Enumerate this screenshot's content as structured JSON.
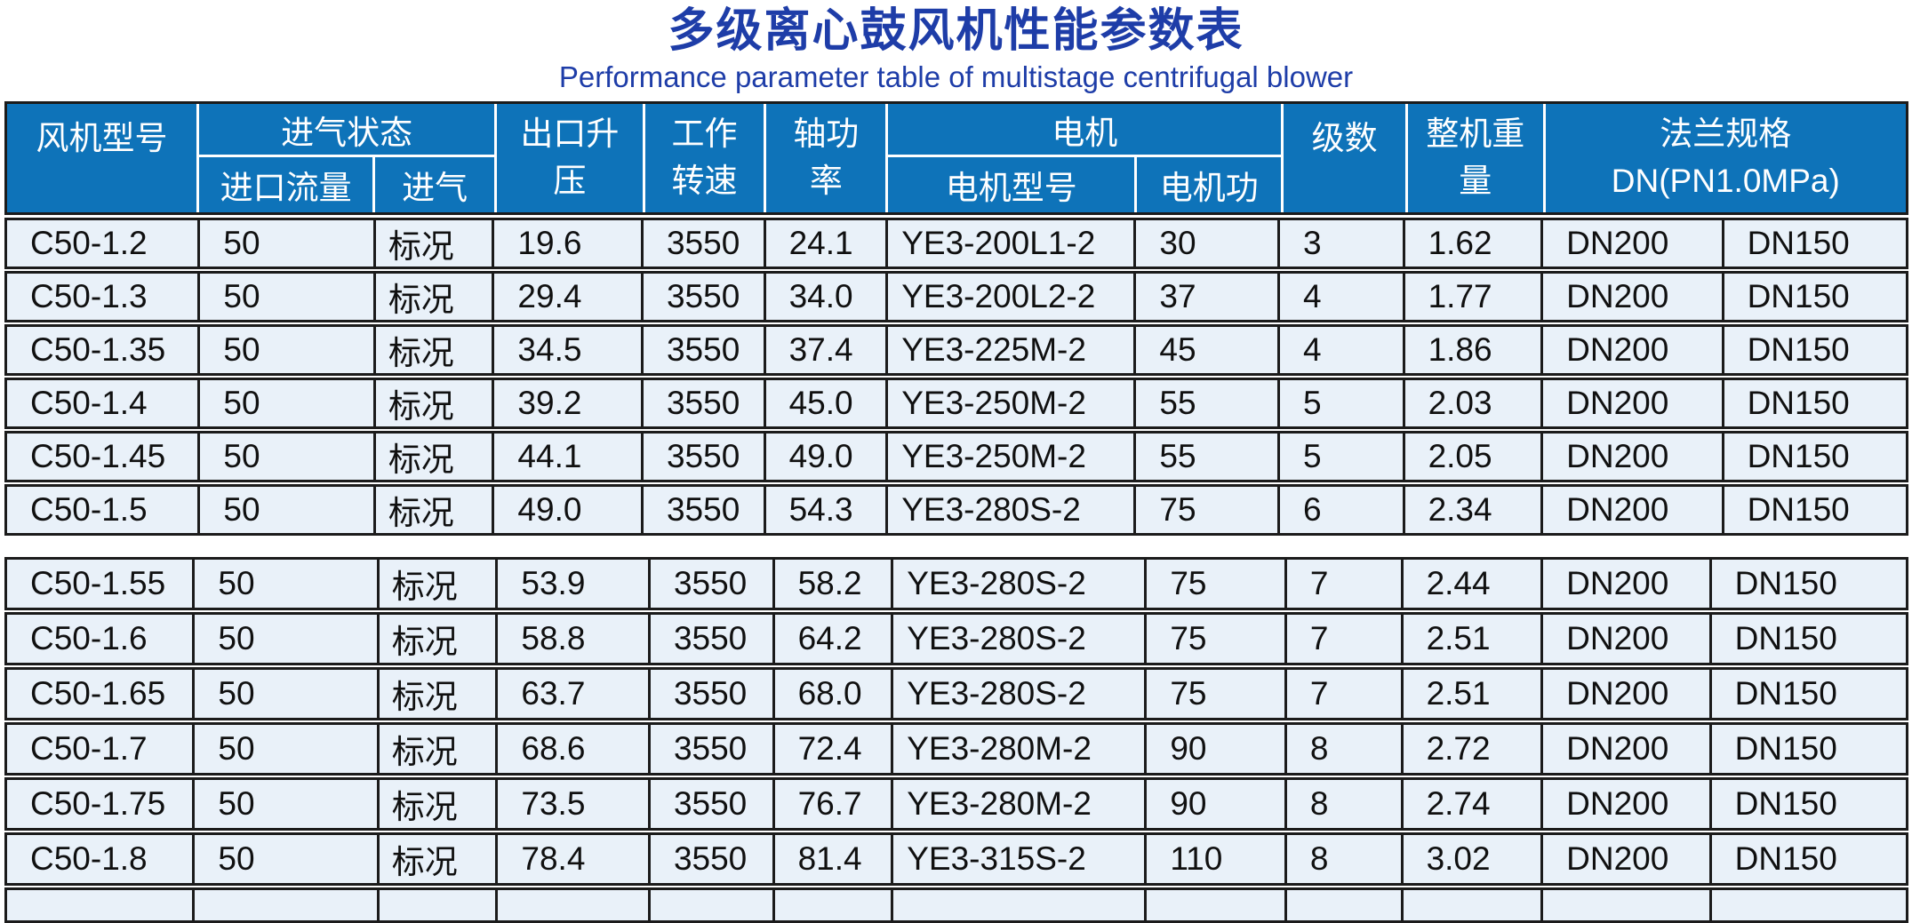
{
  "title": {
    "zh": "多级离心鼓风机性能参数表",
    "en": "Performance parameter table of multistage centrifugal blower"
  },
  "colors": {
    "title_blue": "#1e3da8",
    "header_bg": "#0e73b9",
    "header_text": "#ffffff",
    "row_bg": "#e9f1f9",
    "border_dark": "#1b1b1b"
  },
  "table": {
    "header": {
      "fan_model": "风机型号",
      "intake_state": "进气状态",
      "inlet_flow": "进口流量",
      "intake": "进气",
      "outlet_rise_l1": "出口升",
      "outlet_rise_l2": "压",
      "speed_l1": "工作",
      "speed_l2": "转速",
      "shaft_power_l1": "轴功",
      "shaft_power_l2": "率",
      "motor": "电机",
      "motor_model": "电机型号",
      "motor_power": "电机功",
      "stages": "级数",
      "weight_l1": "整机重",
      "weight_l2": "量",
      "flange_l1": "法兰规格",
      "flange_l2": "DN(PN1.0MPa)"
    },
    "rows_section1": [
      {
        "model": "C50-1.2",
        "flow": "50",
        "state": "标况",
        "pressure": "19.6",
        "speed": "3550",
        "shaft_power": "24.1",
        "motor_model": "YE3-200L1-2",
        "motor_power": "30",
        "stages": "3",
        "weight": "1.62",
        "dn1": "DN200",
        "dn2": "DN150"
      },
      {
        "model": "C50-1.3",
        "flow": "50",
        "state": "标况",
        "pressure": "29.4",
        "speed": "3550",
        "shaft_power": "34.0",
        "motor_model": "YE3-200L2-2",
        "motor_power": "37",
        "stages": "4",
        "weight": "1.77",
        "dn1": "DN200",
        "dn2": "DN150"
      },
      {
        "model": "C50-1.35",
        "flow": "50",
        "state": "标况",
        "pressure": "34.5",
        "speed": "3550",
        "shaft_power": "37.4",
        "motor_model": "YE3-225M-2",
        "motor_power": "45",
        "stages": "4",
        "weight": "1.86",
        "dn1": "DN200",
        "dn2": "DN150"
      },
      {
        "model": "C50-1.4",
        "flow": "50",
        "state": "标况",
        "pressure": "39.2",
        "speed": "3550",
        "shaft_power": "45.0",
        "motor_model": "YE3-250M-2",
        "motor_power": "55",
        "stages": "5",
        "weight": "2.03",
        "dn1": "DN200",
        "dn2": "DN150"
      },
      {
        "model": "C50-1.45",
        "flow": "50",
        "state": "标况",
        "pressure": "44.1",
        "speed": "3550",
        "shaft_power": "49.0",
        "motor_model": "YE3-250M-2",
        "motor_power": "55",
        "stages": "5",
        "weight": "2.05",
        "dn1": "DN200",
        "dn2": "DN150"
      },
      {
        "model": "C50-1.5",
        "flow": "50",
        "state": "标况",
        "pressure": "49.0",
        "speed": "3550",
        "shaft_power": "54.3",
        "motor_model": "YE3-280S-2",
        "motor_power": "75",
        "stages": "6",
        "weight": "2.34",
        "dn1": "DN200",
        "dn2": "DN150"
      }
    ],
    "rows_section2": [
      {
        "model": "C50-1.55",
        "flow": "50",
        "state": "标况",
        "pressure": "53.9",
        "speed": "3550",
        "shaft_power": "58.2",
        "motor_model": "YE3-280S-2",
        "motor_power": "75",
        "stages": "7",
        "weight": "2.44",
        "dn1": "DN200",
        "dn2": "DN150"
      },
      {
        "model": "C50-1.6",
        "flow": "50",
        "state": "标况",
        "pressure": "58.8",
        "speed": "3550",
        "shaft_power": "64.2",
        "motor_model": "YE3-280S-2",
        "motor_power": "75",
        "stages": "7",
        "weight": "2.51",
        "dn1": "DN200",
        "dn2": "DN150"
      },
      {
        "model": "C50-1.65",
        "flow": "50",
        "state": "标况",
        "pressure": "63.7",
        "speed": "3550",
        "shaft_power": "68.0",
        "motor_model": "YE3-280S-2",
        "motor_power": "75",
        "stages": "7",
        "weight": "2.51",
        "dn1": "DN200",
        "dn2": "DN150"
      },
      {
        "model": "C50-1.7",
        "flow": "50",
        "state": "标况",
        "pressure": "68.6",
        "speed": "3550",
        "shaft_power": "72.4",
        "motor_model": "YE3-280M-2",
        "motor_power": "90",
        "stages": "8",
        "weight": "2.72",
        "dn1": "DN200",
        "dn2": "DN150"
      },
      {
        "model": "C50-1.75",
        "flow": "50",
        "state": "标况",
        "pressure": "73.5",
        "speed": "3550",
        "shaft_power": "76.7",
        "motor_model": "YE3-280M-2",
        "motor_power": "90",
        "stages": "8",
        "weight": "2.74",
        "dn1": "DN200",
        "dn2": "DN150"
      },
      {
        "model": "C50-1.8",
        "flow": "50",
        "state": "标况",
        "pressure": "78.4",
        "speed": "3550",
        "shaft_power": "81.4",
        "motor_model": "YE3-315S-2",
        "motor_power": "110",
        "stages": "8",
        "weight": "3.02",
        "dn1": "DN200",
        "dn2": "DN150"
      }
    ]
  }
}
